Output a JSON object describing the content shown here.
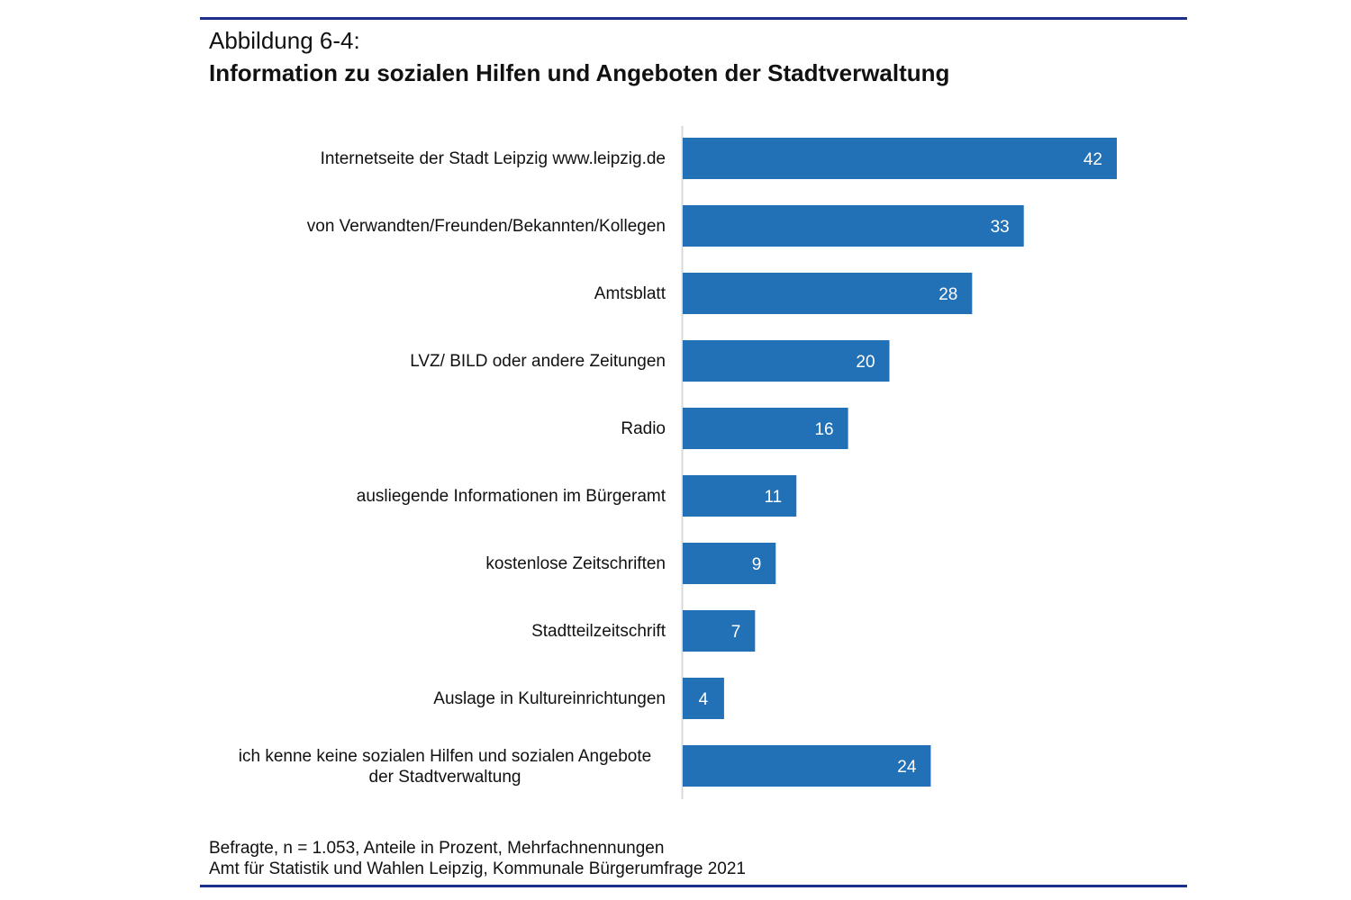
{
  "figure": {
    "number": "Abbildung 6-4:",
    "title": "Information zu sozialen Hilfen und Angeboten der Stadtverwaltung",
    "notes": [
      "Befragte, n = 1.053, Anteile in Prozent, Mehrfachnennungen",
      "Amt für Statistik und Wahlen Leipzig, Kommunale Bürgerumfrage 2021"
    ]
  },
  "colors": {
    "bar": "#2270b6",
    "rule": "#1c2f8a",
    "axis": "#d9d9d9",
    "label_in_bar": "#ffffff"
  },
  "chart_data": {
    "type": "bar",
    "orientation": "horizontal",
    "title": "Information zu sozialen Hilfen und Angeboten der Stadtverwaltung",
    "xlabel": "",
    "ylabel": "",
    "unit": "Prozent",
    "xlim": [
      0,
      42
    ],
    "grid": false,
    "categories": [
      [
        "Internetseite der Stadt Leipzig www.leipzig.de"
      ],
      [
        "von Verwandten/Freunden/Bekannten/Kollegen"
      ],
      [
        "Amtsblatt"
      ],
      [
        "LVZ/ BILD oder andere Zeitungen"
      ],
      [
        "Radio"
      ],
      [
        "ausliegende Informationen im Bürgeramt"
      ],
      [
        "kostenlose Zeitschriften"
      ],
      [
        "Stadtteilzeitschrift"
      ],
      [
        "Auslage in Kultureinrichtungen"
      ],
      [
        "ich kenne keine sozialen Hilfen und sozialen Angebote",
        "der Stadtverwaltung"
      ]
    ],
    "values": [
      42,
      33,
      28,
      20,
      16,
      11,
      9,
      7,
      4,
      24
    ]
  }
}
